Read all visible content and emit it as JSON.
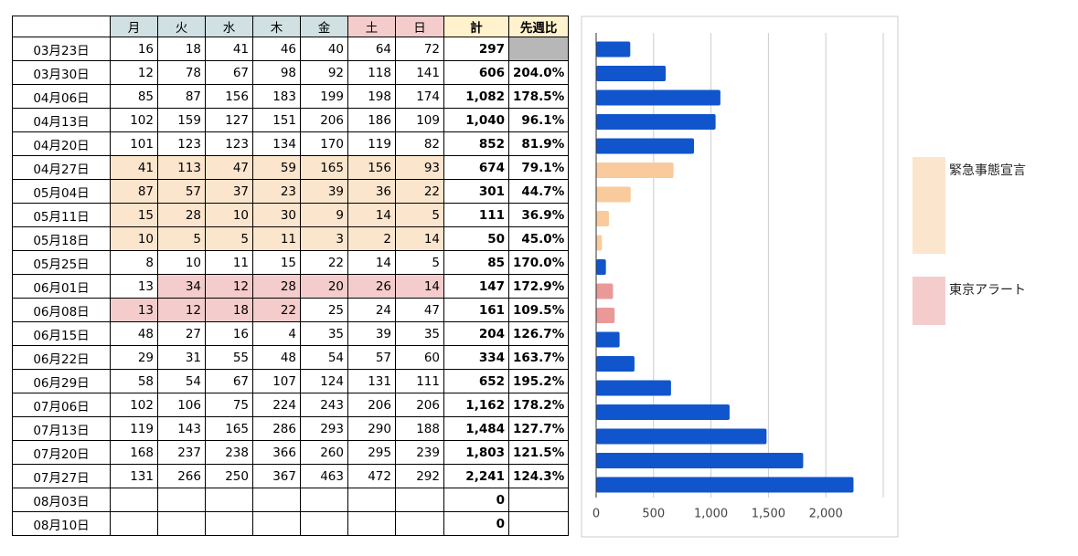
{
  "table": {
    "header": [
      null,
      "月",
      "火",
      "水",
      "木",
      "金",
      "土",
      "日",
      "計",
      "先週比"
    ],
    "header_fills": [
      null,
      "#d0e0e3",
      "#d0e0e3",
      "#d0e0e3",
      "#d0e0e3",
      "#d0e0e3",
      "#f4cccc",
      "#f4cccc",
      "#fff2cc",
      "#fff2cc"
    ],
    "rows": [
      [
        "03月23日",
        "16",
        "18",
        "41",
        "46",
        "40",
        "64",
        "72",
        "297",
        null
      ],
      [
        "03月30日",
        "12",
        "78",
        "67",
        "98",
        "92",
        "118",
        "141",
        "606",
        "204.0%"
      ],
      [
        "04月06日",
        "85",
        "87",
        "156",
        "183",
        "199",
        "198",
        "174",
        "1,082",
        "178.5%"
      ],
      [
        "04月13日",
        "102",
        "159",
        "127",
        "151",
        "206",
        "186",
        "109",
        "1,040",
        "96.1%"
      ],
      [
        "04月20日",
        "101",
        "123",
        "123",
        "134",
        "170",
        "119",
        "82",
        "852",
        "81.9%"
      ],
      [
        "04月27日",
        "41",
        "113",
        "47",
        "59",
        "165",
        "156",
        "93",
        "674",
        "79.1%"
      ],
      [
        "05月04日",
        "87",
        "57",
        "37",
        "23",
        "39",
        "36",
        "22",
        "301",
        "44.7%"
      ],
      [
        "05月11日",
        "15",
        "28",
        "10",
        "30",
        "9",
        "14",
        "5",
        "111",
        "36.9%"
      ],
      [
        "05月18日",
        "10",
        "5",
        "5",
        "11",
        "3",
        "2",
        "14",
        "50",
        "45.0%"
      ],
      [
        "05月25日",
        "8",
        "10",
        "11",
        "15",
        "22",
        "14",
        "5",
        "85",
        "170.0%"
      ],
      [
        "06月01日",
        "13",
        "34",
        "12",
        "28",
        "20",
        "26",
        "14",
        "147",
        "172.9%"
      ],
      [
        "06月08日",
        "13",
        "12",
        "18",
        "22",
        "25",
        "24",
        "47",
        "161",
        "109.5%"
      ],
      [
        "06月15日",
        "48",
        "27",
        "16",
        "4",
        "35",
        "39",
        "35",
        "204",
        "126.7%"
      ],
      [
        "06月22日",
        "29",
        "31",
        "55",
        "48",
        "54",
        "57",
        "60",
        "334",
        "163.7%"
      ],
      [
        "06月29日",
        "58",
        "54",
        "67",
        "107",
        "124",
        "131",
        "111",
        "652",
        "195.2%"
      ],
      [
        "07月06日",
        "102",
        "106",
        "75",
        "224",
        "243",
        "206",
        "206",
        "1,162",
        "178.2%"
      ],
      [
        "07月13日",
        "119",
        "143",
        "165",
        "286",
        "293",
        "290",
        "188",
        "1,484",
        "127.7%"
      ],
      [
        "07月20日",
        "168",
        "237",
        "238",
        "366",
        "260",
        "295",
        "239",
        "1,803",
        "121.5%"
      ],
      [
        "07月27日",
        "131",
        "266",
        "250",
        "367",
        "463",
        "472",
        "292",
        "2,241",
        "124.3%"
      ],
      [
        "08月03日",
        null,
        null,
        null,
        null,
        null,
        null,
        null,
        "0",
        null
      ],
      [
        "08月10日",
        null,
        null,
        null,
        null,
        null,
        null,
        null,
        "0",
        null
      ]
    ],
    "highlights": [
      {
        "rows": [
          0,
          0
        ],
        "cols": [
          9,
          9
        ],
        "color": "#b7b7b7"
      },
      {
        "rows": [
          5,
          8
        ],
        "cols": [
          1,
          7
        ],
        "color": "#fce5cd"
      },
      {
        "rows": [
          10,
          10
        ],
        "cols": [
          2,
          7
        ],
        "color": "#f4cccc"
      },
      {
        "rows": [
          11,
          11
        ],
        "cols": [
          1,
          4
        ],
        "color": "#f4cccc"
      }
    ]
  },
  "chart_data": {
    "type": "bar",
    "orientation": "horizontal",
    "values": [
      297,
      606,
      1082,
      1040,
      852,
      674,
      301,
      111,
      50,
      85,
      147,
      161,
      204,
      334,
      652,
      1162,
      1484,
      1803,
      2241
    ],
    "colors": [
      "#1155cc",
      "#1155cc",
      "#1155cc",
      "#1155cc",
      "#1155cc",
      "#f9cb9c",
      "#f9cb9c",
      "#f9cb9c",
      "#f9cb9c",
      "#1155cc",
      "#ea9999",
      "#ea9999",
      "#1155cc",
      "#1155cc",
      "#1155cc",
      "#1155cc",
      "#1155cc",
      "#1155cc",
      "#1155cc"
    ],
    "xlim": [
      0,
      2500
    ],
    "xticks": [
      0,
      500,
      {
        "value": 1000,
        "label": "1,000"
      },
      {
        "value": 1500,
        "label": "1,500"
      },
      {
        "value": 2000,
        "label": "2,000"
      }
    ],
    "grid": true,
    "legend": [
      {
        "name": "緊急事態宣言",
        "color": "#fce5cd"
      },
      {
        "name": "東京アラート",
        "color": "#f4cccc"
      }
    ]
  }
}
